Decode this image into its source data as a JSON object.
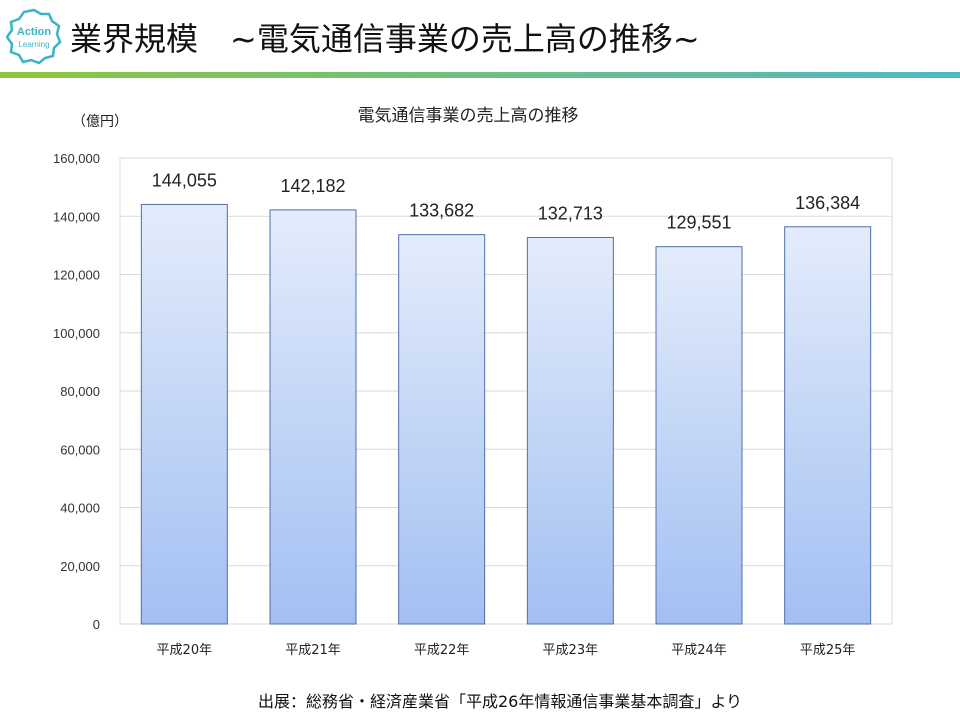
{
  "header": {
    "logo_text_1": "Action",
    "logo_text_2": "Learning",
    "title": "業界規模　~電気通信事業の売上高の推移~"
  },
  "colors": {
    "bar_top": "#e3ecfb",
    "bar_bottom": "#a3bff2",
    "bar_stroke": "#4f6fa8",
    "rule_green": "#8dc63f",
    "rule_teal": "#4fb8c4"
  },
  "chart_data": {
    "type": "bar",
    "title": "電気通信事業の売上高の推移",
    "unit_label": "（億円）",
    "categories": [
      "平成20年",
      "平成21年",
      "平成22年",
      "平成23年",
      "平成24年",
      "平成25年"
    ],
    "values": [
      144055,
      142182,
      133682,
      132713,
      129551,
      136384
    ],
    "value_labels": [
      "144,055",
      "142,182",
      "133,682",
      "132,713",
      "129,551",
      "136,384"
    ],
    "ylim": [
      0,
      160000
    ],
    "yticks": [
      0,
      20000,
      40000,
      60000,
      80000,
      100000,
      120000,
      140000,
      160000
    ],
    "ytick_labels": [
      "0",
      "20,000",
      "40,000",
      "60,000",
      "80,000",
      "100,000",
      "120,000",
      "140,000",
      "160,000"
    ],
    "grid": true,
    "legend": "none"
  },
  "footer": {
    "source": "出展：総務省・経済産業省「平成26年情報通信事業基本調査」より"
  }
}
